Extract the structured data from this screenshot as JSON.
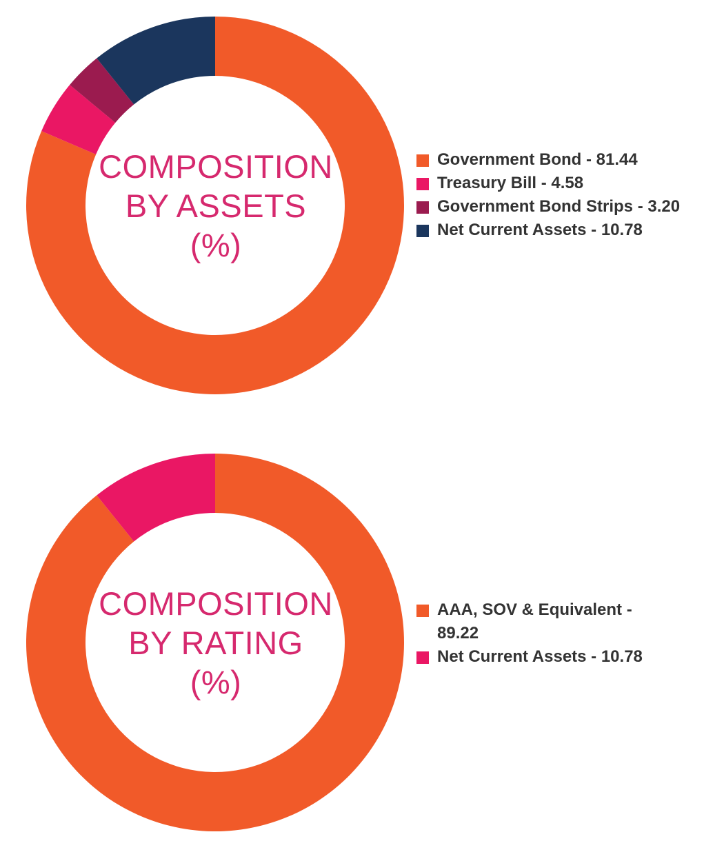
{
  "chart_data": [
    {
      "type": "pie",
      "title": "COMPOSITION BY ASSETS (%)",
      "title_lines": [
        "COMPOSITION",
        "BY ASSETS",
        "(%)"
      ],
      "categories": [
        "Government Bond",
        "Treasury Bill",
        "Government Bond Strips",
        "Net Current Assets"
      ],
      "values": [
        81.44,
        4.58,
        3.2,
        10.78
      ],
      "labels": [
        "Government Bond - 81.44",
        "Treasury Bill - 4.58",
        "Government Bond Strips - 3.20",
        "Net Current Assets - 10.78"
      ],
      "colors": [
        "#f15a29",
        "#ea1764",
        "#9b1b4f",
        "#1b365d"
      ],
      "donut": true,
      "legend_position": "right"
    },
    {
      "type": "pie",
      "title": "COMPOSITION BY RATING (%)",
      "title_lines": [
        "COMPOSITION",
        "BY RATING",
        "(%)"
      ],
      "categories": [
        "AAA, SOV & Equivalent",
        "Net Current Assets"
      ],
      "values": [
        89.22,
        10.78
      ],
      "labels": [
        "AAA, SOV & Equivalent -",
        "Net Current Assets - 10.78"
      ],
      "label_continuations": [
        "89.22",
        ""
      ],
      "colors": [
        "#f15a29",
        "#ea1764"
      ],
      "donut": true,
      "legend_position": "right"
    }
  ]
}
